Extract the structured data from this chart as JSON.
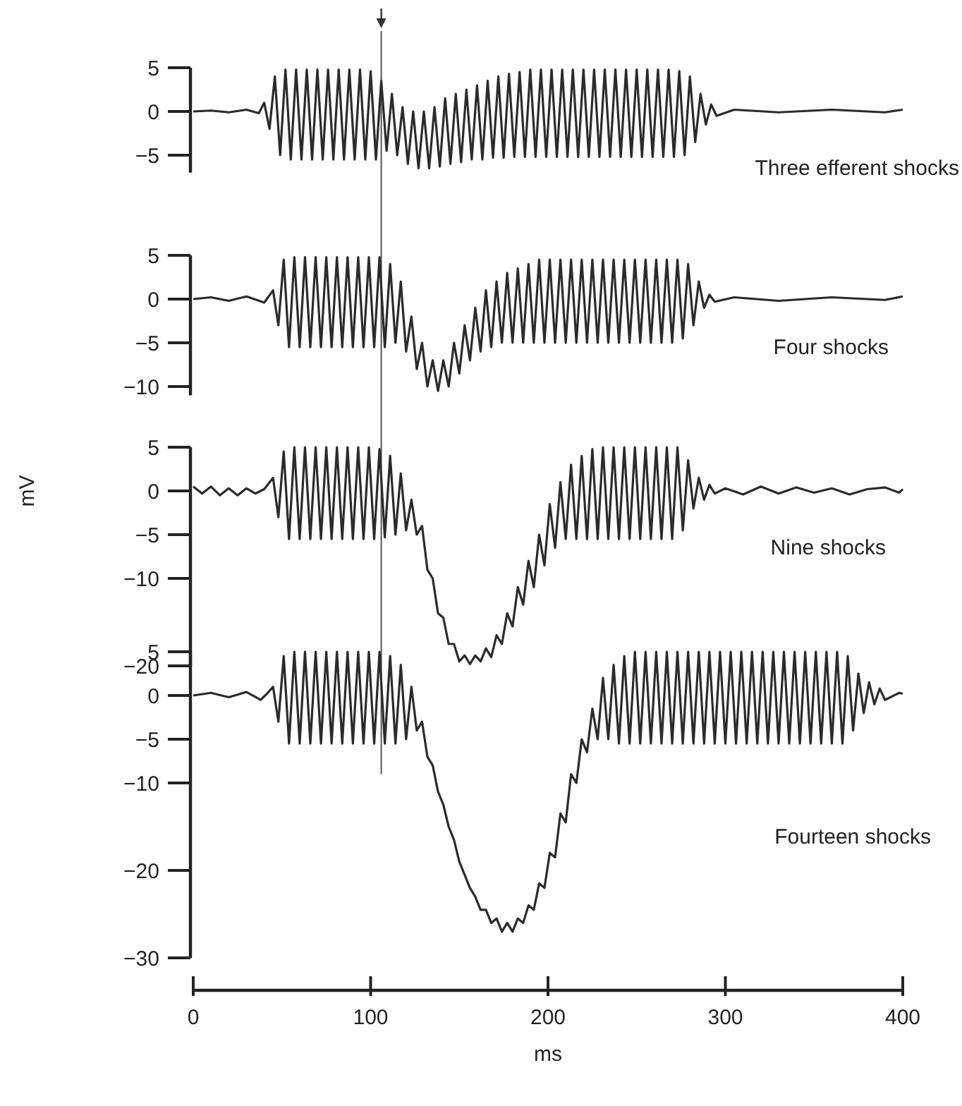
{
  "chart_data": [
    {
      "type": "line",
      "xlim": [
        0,
        400
      ],
      "ylim": [
        -7,
        5
      ],
      "yticks": [
        5,
        0,
        -5
      ],
      "tick_labels": "y",
      "ref_lines": [
        {
          "axis": "x",
          "value": 106
        }
      ],
      "annotations": [
        "Three efferent shocks"
      ],
      "series": [
        {
          "color": "#2b2b2b",
          "x": [
            0,
            10,
            20,
            30,
            37,
            40,
            43,
            46,
            49,
            52,
            55,
            58,
            61,
            64,
            67,
            70,
            73,
            76,
            79,
            82,
            85,
            88,
            91,
            94,
            97,
            100,
            103,
            106,
            109,
            112,
            115,
            118,
            121,
            124,
            127,
            130,
            133,
            136,
            139,
            142,
            145,
            148,
            151,
            154,
            157,
            160,
            163,
            166,
            169,
            172,
            175,
            178,
            181,
            184,
            187,
            190,
            193,
            196,
            199,
            202,
            205,
            208,
            211,
            214,
            217,
            220,
            223,
            226,
            229,
            232,
            235,
            238,
            241,
            244,
            247,
            250,
            253,
            256,
            259,
            262,
            265,
            268,
            271,
            274,
            277,
            280,
            283,
            286,
            289,
            292,
            295,
            305,
            330,
            360,
            390,
            400
          ],
          "values": [
            0,
            0.1,
            -0.1,
            0.2,
            -0.2,
            1,
            -2,
            4,
            -5,
            4.8,
            -5.5,
            4.8,
            -5.5,
            4.8,
            -5.5,
            4.8,
            -5.5,
            4.8,
            -5.5,
            4.8,
            -5.5,
            4.8,
            -5.5,
            4.8,
            -5.5,
            4.6,
            -5.5,
            3.5,
            -4.5,
            2,
            -5,
            0.5,
            -6,
            0,
            -6.5,
            0,
            -6.5,
            0.5,
            -6.3,
            1.5,
            -6,
            2,
            -5.8,
            2.5,
            -5.5,
            3,
            -5.5,
            3.5,
            -5.3,
            4,
            -5.3,
            4.3,
            -5.2,
            4.5,
            -5.2,
            4.8,
            -5.2,
            4.8,
            -5.2,
            4.8,
            -5.2,
            4.8,
            -5.2,
            4.8,
            -5.2,
            4.8,
            -5.2,
            4.8,
            -5.2,
            4.8,
            -5.2,
            4.8,
            -5.2,
            4.8,
            -5.2,
            4.8,
            -5.2,
            4.8,
            -5.2,
            4.8,
            -5.2,
            4.8,
            -5.2,
            4.6,
            -5,
            4,
            -3.5,
            2,
            -1.5,
            0.8,
            -0.5,
            0.2,
            -0.1,
            0.2,
            -0.1,
            0.2
          ]
        }
      ]
    },
    {
      "type": "line",
      "xlim": [
        0,
        400
      ],
      "ylim": [
        -11,
        5
      ],
      "yticks": [
        5,
        0,
        -5,
        -10
      ],
      "tick_labels": "y",
      "ref_lines": [
        {
          "axis": "x",
          "value": 106
        }
      ],
      "annotations": [
        "Four shocks"
      ],
      "series": [
        {
          "color": "#2b2b2b",
          "x": [
            0,
            10,
            20,
            30,
            40,
            45,
            48,
            51,
            54,
            57,
            60,
            63,
            66,
            69,
            72,
            75,
            78,
            81,
            84,
            87,
            90,
            93,
            96,
            99,
            102,
            105,
            108,
            111,
            114,
            117,
            120,
            123,
            126,
            129,
            132,
            135,
            138,
            141,
            144,
            147,
            150,
            153,
            156,
            159,
            162,
            165,
            168,
            171,
            174,
            177,
            180,
            183,
            186,
            189,
            192,
            195,
            198,
            201,
            204,
            207,
            210,
            213,
            216,
            219,
            222,
            225,
            228,
            231,
            234,
            237,
            240,
            243,
            246,
            249,
            252,
            255,
            258,
            261,
            264,
            267,
            270,
            273,
            276,
            279,
            282,
            285,
            288,
            291,
            294,
            305,
            330,
            360,
            390,
            400
          ],
          "values": [
            0,
            0.2,
            -0.2,
            0.3,
            -0.4,
            1,
            -3,
            4.5,
            -5.5,
            4.8,
            -5.5,
            4.8,
            -5.5,
            4.8,
            -5.5,
            4.8,
            -5.5,
            4.8,
            -5.5,
            4.8,
            -5.5,
            4.8,
            -5.5,
            4.8,
            -5.5,
            4.8,
            -5.5,
            4,
            -5,
            2,
            -6,
            -2,
            -8,
            -5,
            -10,
            -7,
            -10.5,
            -7,
            -10,
            -5,
            -8.5,
            -3,
            -7,
            -1,
            -6,
            1,
            -5.5,
            2,
            -5,
            3,
            -5,
            3.5,
            -5,
            4,
            -5,
            4.5,
            -5,
            4.5,
            -5,
            4.5,
            -5,
            4.5,
            -5,
            4.5,
            -5,
            4.5,
            -5,
            4.5,
            -5,
            4.5,
            -5,
            4.5,
            -5,
            4.5,
            -5,
            4.5,
            -5,
            4.5,
            -5,
            4.5,
            -5,
            4.5,
            -4.5,
            4,
            -3,
            2,
            -1,
            0.5,
            -0.3,
            0.2,
            -0.2,
            0.2,
            -0.1,
            0.3
          ]
        }
      ]
    },
    {
      "type": "line",
      "xlim": [
        0,
        400
      ],
      "ylim": [
        -20,
        5
      ],
      "yticks": [
        5,
        0,
        -5,
        -10,
        -20
      ],
      "tick_labels": "y",
      "ylabel": "mV",
      "ref_lines": [
        {
          "axis": "x",
          "value": 106
        }
      ],
      "annotations": [
        "Nine shocks"
      ],
      "series": [
        {
          "color": "#2b2b2b",
          "x": [
            0,
            5,
            10,
            15,
            20,
            25,
            30,
            35,
            40,
            45,
            48,
            51,
            54,
            57,
            60,
            63,
            66,
            69,
            72,
            75,
            78,
            81,
            84,
            87,
            90,
            93,
            96,
            99,
            102,
            105,
            108,
            111,
            114,
            117,
            120,
            123,
            126,
            129,
            132,
            135,
            138,
            141,
            144,
            147,
            150,
            153,
            156,
            159,
            162,
            165,
            168,
            171,
            174,
            177,
            180,
            183,
            186,
            189,
            192,
            195,
            198,
            201,
            204,
            207,
            210,
            213,
            216,
            219,
            222,
            225,
            228,
            231,
            234,
            237,
            240,
            243,
            246,
            249,
            252,
            255,
            258,
            261,
            264,
            267,
            270,
            273,
            276,
            279,
            282,
            285,
            288,
            291,
            294,
            300,
            310,
            320,
            330,
            340,
            350,
            360,
            370,
            380,
            390,
            398,
            400
          ],
          "values": [
            0.5,
            -0.3,
            0.5,
            -0.5,
            0.3,
            -0.5,
            0.3,
            -0.3,
            0.2,
            1.5,
            -3,
            4.5,
            -5.5,
            5,
            -5.5,
            5,
            -5.5,
            5,
            -5.5,
            5,
            -5.5,
            5,
            -5.5,
            5,
            -5.5,
            5,
            -5.5,
            5,
            -5.5,
            4.8,
            -5.3,
            4,
            -5,
            2,
            -4.5,
            -1,
            -5,
            -4,
            -9,
            -10,
            -14,
            -14.5,
            -17.5,
            -17.5,
            -19.5,
            -18.8,
            -19.8,
            -18.8,
            -19.5,
            -18,
            -19,
            -16.5,
            -17.5,
            -14,
            -15.5,
            -11,
            -13,
            -8,
            -11,
            -5,
            -8.5,
            -1.5,
            -6.5,
            1,
            -5.5,
            3,
            -5.5,
            4,
            -5.5,
            4.8,
            -5.5,
            5,
            -5.5,
            5,
            -5.5,
            5,
            -5.5,
            5,
            -5.5,
            5,
            -5.5,
            5,
            -5.5,
            5,
            -5.5,
            5,
            -4.5,
            3.5,
            -2,
            1.5,
            -1,
            0.7,
            -0.3,
            0.3,
            -0.4,
            0.5,
            -0.3,
            0.4,
            -0.2,
            0.3,
            -0.4,
            0.2,
            0.4,
            -0.2,
            0.2
          ]
        }
      ]
    },
    {
      "type": "line",
      "xlim": [
        0,
        400
      ],
      "xticks": [
        0,
        100,
        200,
        300,
        400
      ],
      "xlabel": "ms",
      "ylim": [
        -30,
        5
      ],
      "yticks": [
        5,
        0,
        -5,
        -10,
        -20,
        -30
      ],
      "ref_lines": [
        {
          "axis": "x",
          "value": 106
        }
      ],
      "annotations": [
        "Fourteen shocks"
      ],
      "series": [
        {
          "color": "#2b2b2b",
          "x": [
            0,
            10,
            20,
            30,
            38,
            42,
            45,
            48,
            51,
            54,
            57,
            60,
            63,
            66,
            69,
            72,
            75,
            78,
            81,
            84,
            87,
            90,
            93,
            96,
            99,
            102,
            105,
            108,
            111,
            114,
            117,
            120,
            123,
            126,
            129,
            132,
            135,
            138,
            141,
            144,
            147,
            150,
            153,
            156,
            159,
            162,
            165,
            168,
            171,
            174,
            177,
            180,
            183,
            186,
            189,
            192,
            195,
            198,
            201,
            204,
            207,
            210,
            213,
            216,
            219,
            222,
            225,
            228,
            231,
            234,
            237,
            240,
            243,
            246,
            249,
            252,
            255,
            258,
            261,
            264,
            267,
            270,
            273,
            276,
            279,
            282,
            285,
            288,
            291,
            294,
            297,
            300,
            303,
            306,
            309,
            312,
            315,
            318,
            321,
            324,
            327,
            330,
            333,
            336,
            339,
            342,
            345,
            348,
            351,
            354,
            357,
            360,
            363,
            366,
            369,
            372,
            375,
            378,
            381,
            384,
            387,
            390,
            398,
            400
          ],
          "values": [
            0,
            0.3,
            -0.2,
            0.4,
            -0.5,
            0.3,
            1,
            -3,
            4.5,
            -5.5,
            5,
            -5.5,
            5,
            -5.5,
            5,
            -5.5,
            5,
            -5.5,
            5,
            -5.5,
            5,
            -5.5,
            5,
            -5.5,
            5,
            -5.5,
            5,
            -5.5,
            4.5,
            -5.5,
            3.5,
            -5,
            1,
            -4,
            -3,
            -7,
            -8,
            -11,
            -12.5,
            -15,
            -16.5,
            -19,
            -20.5,
            -22,
            -23,
            -24.5,
            -24.5,
            -26,
            -25.5,
            -27,
            -26,
            -27,
            -25.5,
            -26,
            -24,
            -24.5,
            -21.5,
            -22,
            -18,
            -18.5,
            -13.5,
            -14.5,
            -9,
            -10,
            -5,
            -6.5,
            -1.5,
            -5,
            2,
            -5,
            3.5,
            -5.5,
            4.5,
            -5.5,
            5,
            -5.5,
            5,
            -5.5,
            5,
            -5.5,
            5,
            -5.5,
            5,
            -5.5,
            5,
            -5.5,
            5,
            -5.5,
            5,
            -5.5,
            5,
            -5.5,
            5,
            -5.5,
            5,
            -5.5,
            5,
            -5.5,
            5,
            -5.5,
            5,
            -5.5,
            5,
            -5.5,
            5,
            -5.5,
            5,
            -5.5,
            5,
            -5.5,
            5,
            -5.5,
            5,
            -5.5,
            4.5,
            -4,
            2.5,
            -2,
            1.5,
            -1,
            0.8,
            -0.5,
            0.3,
            0.2
          ]
        }
      ]
    }
  ]
}
